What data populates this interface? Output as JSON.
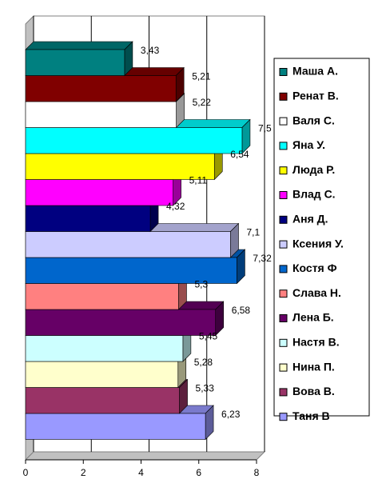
{
  "chart_data": {
    "type": "bar",
    "series": [
      {
        "name": "Маша А.",
        "color": "#008080",
        "values": [
          3.43
        ],
        "value_labels": [
          "3,43"
        ]
      },
      {
        "name": "Ренат В.",
        "color": "#800000",
        "values": [
          5.21
        ],
        "value_labels": [
          "5,21"
        ]
      },
      {
        "name": "Валя С.",
        "color": "#ffffff",
        "values": [
          5.22
        ],
        "value_labels": [
          "5,22"
        ]
      },
      {
        "name": "Яна У.",
        "color": "#00ffff",
        "values": [
          7.5
        ],
        "value_labels": [
          "7,5"
        ]
      },
      {
        "name": "Люда Р.",
        "color": "#ffff00",
        "values": [
          6.54
        ],
        "value_labels": [
          "6,54"
        ]
      },
      {
        "name": "Влад С.",
        "color": "#ff00ff",
        "values": [
          5.11
        ],
        "value_labels": [
          "5,11"
        ]
      },
      {
        "name": "Аня Д.",
        "color": "#000080",
        "values": [
          4.32
        ],
        "value_labels": [
          "4,32"
        ]
      },
      {
        "name": "Ксения У.",
        "color": "#ccccff",
        "values": [
          7.1
        ],
        "value_labels": [
          "7,1"
        ]
      },
      {
        "name": "Костя Ф",
        "color": "#0066cc",
        "values": [
          7.32
        ],
        "value_labels": [
          "7,32"
        ]
      },
      {
        "name": "Слава Н.",
        "color": "#ff8080",
        "values": [
          5.3
        ],
        "value_labels": [
          "5,3"
        ]
      },
      {
        "name": "Лена Б.",
        "color": "#660066",
        "values": [
          6.58
        ],
        "value_labels": [
          "6,58"
        ]
      },
      {
        "name": "Настя В.",
        "color": "#ccffff",
        "values": [
          5.45
        ],
        "value_labels": [
          "5,45"
        ]
      },
      {
        "name": "Нина П.",
        "color": "#ffffcc",
        "values": [
          5.28
        ],
        "value_labels": [
          "5,28"
        ]
      },
      {
        "name": "Вова В.",
        "color": "#993366",
        "values": [
          5.33
        ],
        "value_labels": [
          "5,33"
        ]
      },
      {
        "name": "Таня В",
        "color": "#9999ff",
        "values": [
          6.23
        ],
        "value_labels": [
          "6,23"
        ]
      }
    ],
    "xlim": [
      0,
      8
    ],
    "xticks": [
      0,
      2,
      4,
      6,
      8
    ],
    "grid": true
  }
}
